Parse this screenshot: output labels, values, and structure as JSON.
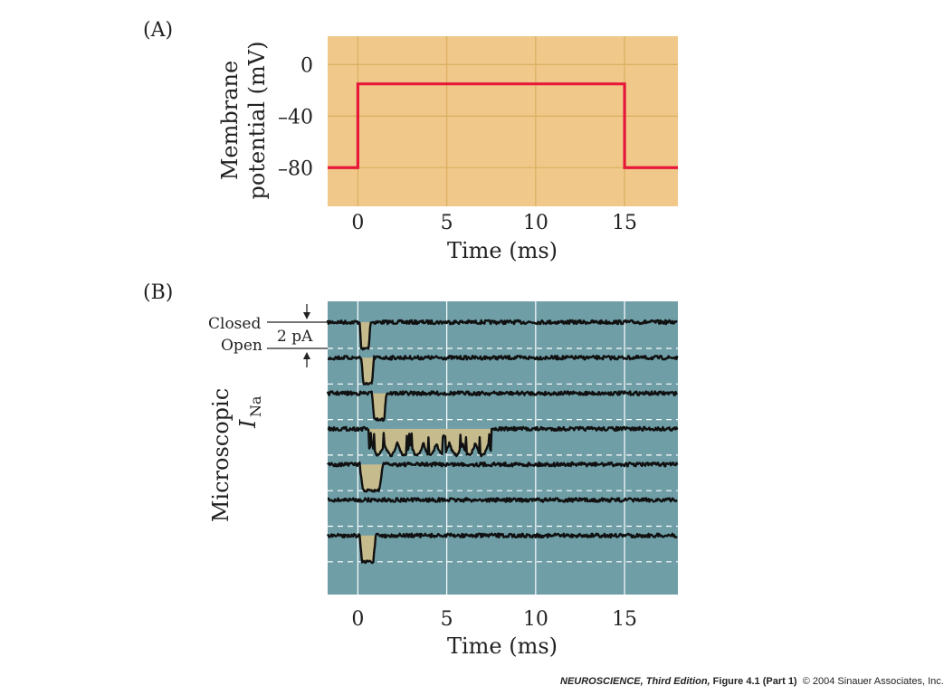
{
  "chart_data": [
    {
      "panel_label": "(A)",
      "type": "line",
      "xlabel": "Time (ms)",
      "ylabel_line1": "Membrane",
      "ylabel_line2": "potential (mV)",
      "xlim": [
        -1.7,
        18
      ],
      "ylim": [
        -110,
        22
      ],
      "x_ticks": [
        0,
        5,
        10,
        15
      ],
      "x_tick_labels": [
        "0",
        "5",
        "10",
        "15"
      ],
      "y_ticks": [
        0,
        -40,
        -80
      ],
      "y_tick_labels": [
        "0",
        "–40",
        "–80"
      ],
      "grid": true,
      "series": [
        {
          "x": [
            -1.7,
            0,
            0,
            15,
            15,
            18
          ],
          "y": [
            -80,
            -80,
            -15,
            -15,
            -80,
            -80
          ]
        }
      ],
      "colors": {
        "background": "#f0c98a",
        "grid": "#dcb062",
        "line": "#e8173a"
      }
    },
    {
      "panel_label": "(B)",
      "type": "line",
      "xlabel": "Time (ms)",
      "ylabel": "Microscopic",
      "ylabel_symbol": "I",
      "ylabel_subscript": "Na",
      "xlim": [
        -1.7,
        18
      ],
      "x_ticks": [
        0,
        5,
        10,
        15
      ],
      "x_tick_labels": [
        "0",
        "5",
        "10",
        "15"
      ],
      "grid": true,
      "annotations": {
        "closed": "Closed",
        "open": "Open",
        "scale": "2 pA"
      },
      "traces": [
        {
          "openings": [
            [
              0.1,
              0.7
            ]
          ]
        },
        {
          "openings": [
            [
              0.2,
              0.9
            ]
          ]
        },
        {
          "openings": [
            [
              0.8,
              1.6
            ]
          ]
        },
        {
          "openings": [
            [
              0.6,
              7.5
            ]
          ]
        },
        {
          "openings": [
            [
              0.1,
              1.4
            ]
          ]
        },
        {
          "openings": []
        },
        {
          "openings": [
            [
              0.1,
              1.0
            ]
          ]
        }
      ],
      "colors": {
        "background": "#6f9ea7",
        "grid": "#ffffff",
        "trace": "#111111",
        "open_fill": "#c6bb8d"
      }
    }
  ],
  "footer": {
    "book": "NEUROSCIENCE",
    "edition": ", Third Edition,",
    "figure": " Figure 4.1 (Part 1)",
    "copyright": "© 2004 Sinauer Associates, Inc."
  }
}
